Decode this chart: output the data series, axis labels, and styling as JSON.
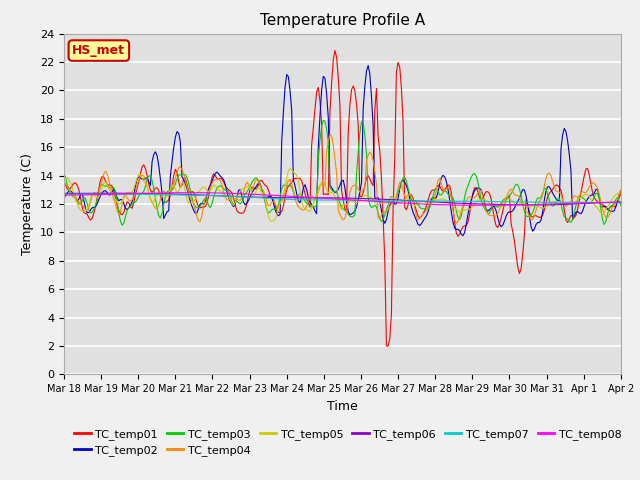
{
  "title": "Temperature Profile A",
  "xlabel": "Time",
  "ylabel": "Temperature (C)",
  "ylim": [
    0,
    24
  ],
  "yticks": [
    0,
    2,
    4,
    6,
    8,
    10,
    12,
    14,
    16,
    18,
    20,
    22,
    24
  ],
  "xtick_labels": [
    "Mar 18",
    "Mar 19",
    "Mar 20",
    "Mar 21",
    "Mar 22",
    "Mar 23",
    "Mar 24",
    "Mar 25",
    "Mar 26",
    "Mar 27",
    "Mar 28",
    "Mar 29",
    "Mar 30",
    "Mar 31",
    "Apr 1",
    "Apr 2"
  ],
  "series_colors": {
    "TC_temp01": "#ff0000",
    "TC_temp02": "#0000cc",
    "TC_temp03": "#00cc00",
    "TC_temp04": "#ff8800",
    "TC_temp05": "#cccc00",
    "TC_temp06": "#8800cc",
    "TC_temp07": "#00cccc",
    "TC_temp08": "#ff00ff"
  },
  "annotation_text": "HS_met",
  "annotation_color": "#cc0000",
  "annotation_bg": "#ffff99",
  "fig_bg": "#f0f0f0",
  "plot_bg": "#e0e0e0",
  "grid_color": "#ffffff",
  "n_points": 336,
  "legend_row1": [
    "TC_temp01",
    "TC_temp02",
    "TC_temp03",
    "TC_temp04",
    "TC_temp05",
    "TC_temp06"
  ],
  "legend_row2": [
    "TC_temp07",
    "TC_temp08"
  ]
}
